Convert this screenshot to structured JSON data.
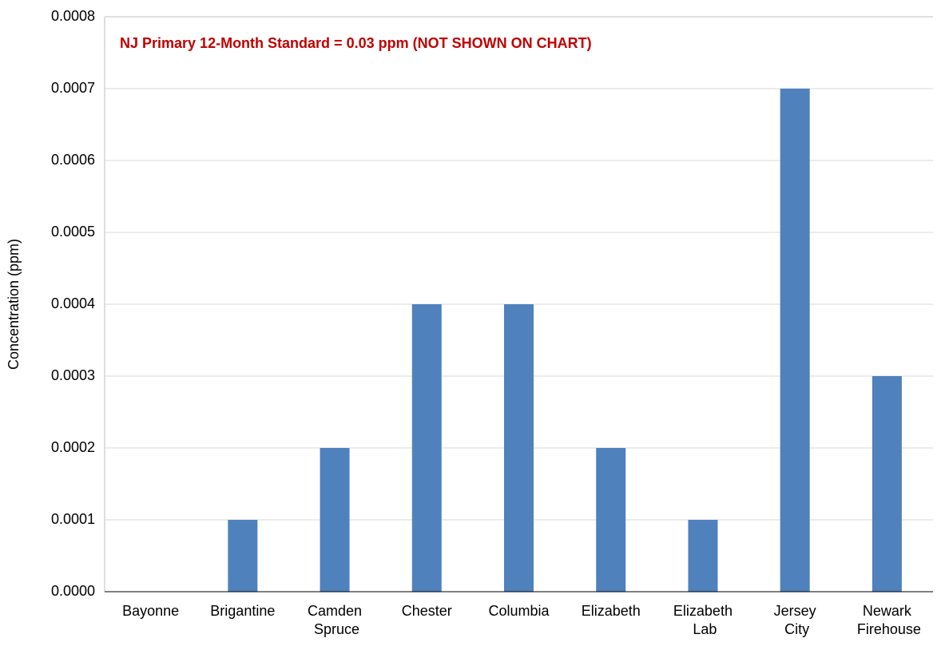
{
  "chart_data": {
    "type": "bar",
    "annotation": "NJ Primary 12-Month Standard = 0.03 ppm (NOT SHOWN ON CHART)",
    "y_label": "Concentration (ppm)",
    "categories": [
      "Bayonne",
      "Brigantine",
      "Camden Spruce",
      "Chester",
      "Columbia",
      "Elizabeth",
      "Elizabeth Lab",
      "Jersey City",
      "Newark Firehouse"
    ],
    "values": [
      0,
      0.0001,
      0.0002,
      0.0004,
      0.0004,
      0.0002,
      0.0001,
      0.0007,
      0.0003
    ],
    "color": "#4f81bd",
    "ylim": [
      0,
      0.0008
    ],
    "yticks": [
      {
        "value": 0,
        "label": "0.0000"
      },
      {
        "value": 0.0001,
        "label": "0.0001"
      },
      {
        "value": 0.0002,
        "label": "0.0002"
      },
      {
        "value": 0.0003,
        "label": "0.0003"
      },
      {
        "value": 0.0004,
        "label": "0.0004"
      },
      {
        "value": 0.0005,
        "label": "0.0005"
      },
      {
        "value": 0.0006,
        "label": "0.0006"
      },
      {
        "value": 0.0007,
        "label": "0.0007"
      },
      {
        "value": 0.0008,
        "label": "0.0008"
      }
    ],
    "grid": true
  }
}
